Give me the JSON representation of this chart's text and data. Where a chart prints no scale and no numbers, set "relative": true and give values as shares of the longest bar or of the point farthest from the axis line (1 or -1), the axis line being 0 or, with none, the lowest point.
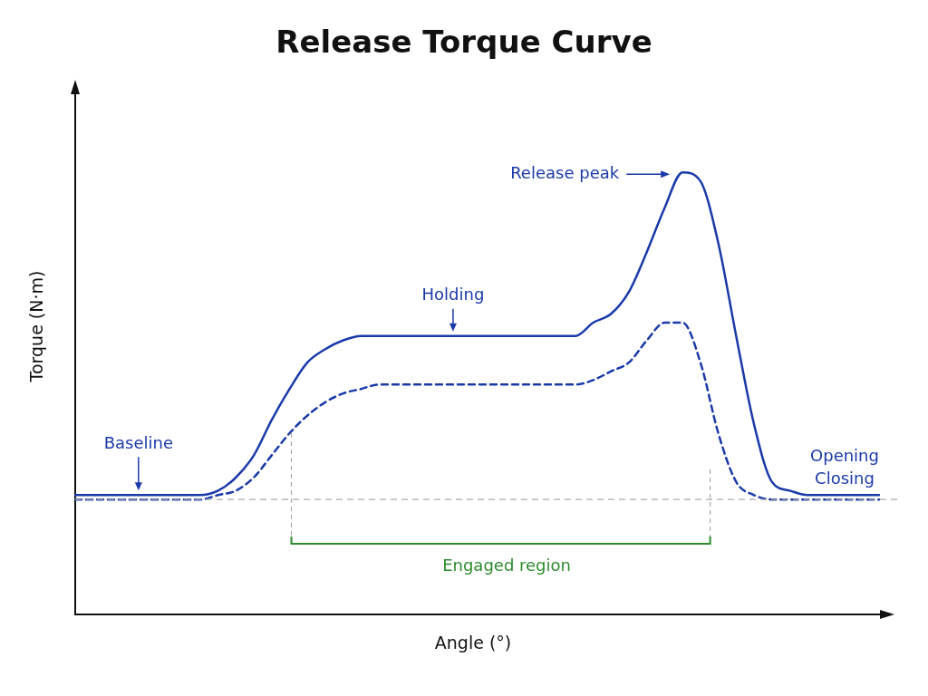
{
  "chart_data": {
    "type": "line",
    "title": "Release Torque Curve",
    "xlabel": "Angle (°)",
    "ylabel": "Torque (N·m)",
    "relative": true,
    "categories": [
      null,
      null,
      null,
      null,
      null,
      null,
      null,
      null,
      null,
      null,
      null,
      null,
      null,
      null,
      null,
      null,
      null,
      null,
      null,
      null,
      null,
      null,
      null,
      null,
      null,
      null,
      null,
      null,
      null,
      null,
      null,
      null,
      null,
      null,
      null,
      null,
      null,
      null,
      null,
      null,
      null,
      null,
      null,
      null,
      null,
      null
    ],
    "series": [
      {
        "name": "Opening",
        "color": "#1a3aa8",
        "line_style": "solid",
        "values": [
          0.27,
          0.27,
          0.27,
          0.27,
          0.27,
          0.27,
          0.27,
          0.27,
          0.28,
          0.31,
          0.36,
          0.44,
          0.51,
          0.57,
          0.6,
          0.62,
          0.63,
          0.63,
          0.63,
          0.63,
          0.63,
          0.63,
          0.63,
          0.63,
          0.63,
          0.63,
          0.63,
          0.63,
          0.63,
          0.66,
          0.68,
          0.73,
          0.82,
          0.92,
          1,
          0.98,
          0.84,
          0.63,
          0.43,
          0.3,
          0.28,
          0.27,
          0.27,
          0.27,
          0.27,
          0.27
        ]
      },
      {
        "name": "Closing",
        "color": "#1a3aa8",
        "line_style": "dashed",
        "values": [
          0.26,
          0.26,
          0.26,
          0.26,
          0.26,
          0.26,
          0.26,
          0.26,
          0.27,
          0.28,
          0.31,
          0.36,
          0.41,
          0.45,
          0.48,
          0.5,
          0.51,
          0.52,
          0.52,
          0.52,
          0.52,
          0.52,
          0.52,
          0.52,
          0.52,
          0.52,
          0.52,
          0.52,
          0.52,
          0.53,
          0.55,
          0.57,
          0.62,
          0.66,
          0.66,
          0.57,
          0.41,
          0.3,
          0.27,
          0.26,
          0.26,
          0.26,
          0.26,
          0.26,
          0.26,
          0.26
        ]
      }
    ],
    "ref_lines": [
      {
        "axis": "y",
        "value": 0.26,
        "color": "#aaaaaa",
        "line_style": "dashed"
      }
    ],
    "annotations": [
      "Release peak",
      "Holding",
      "Baseline",
      "Engaged region"
    ],
    "marker": "none",
    "grid": false,
    "legend": false
  }
}
